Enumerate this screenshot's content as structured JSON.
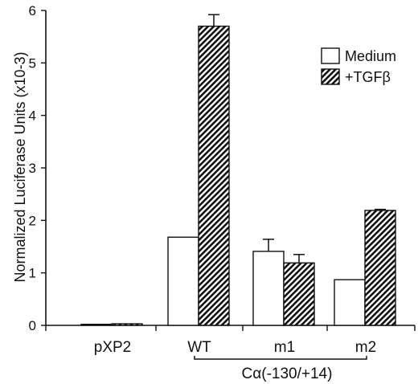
{
  "chart_data": {
    "type": "bar",
    "ylabel": "Normalized Luciferase Units (x10-3)",
    "ylim": [
      0,
      6
    ],
    "yticks": [
      "0",
      "1",
      "2",
      "3",
      "4",
      "5",
      "6"
    ],
    "categories": [
      "pXP2",
      "WT",
      "m1",
      "m2"
    ],
    "series": [
      {
        "name": "Medium",
        "values": [
          0.02,
          1.68,
          1.41,
          0.87
        ],
        "errors": [
          0,
          0,
          0.23,
          0
        ],
        "fill": "#ffffff"
      },
      {
        "name": "+TGFβ",
        "values": [
          0.03,
          5.7,
          1.19,
          2.19
        ],
        "errors": [
          0,
          0.22,
          0.16,
          0.02
        ],
        "fill": "hatched"
      }
    ],
    "legend": {
      "placement": "top-right"
    },
    "grid": false,
    "bracket": {
      "label": "Cα(-130/+14)",
      "spans": [
        "WT",
        "m2"
      ]
    },
    "colors": {
      "stroke": "#111111",
      "bar": "#ffffff",
      "hatch": "#111111"
    }
  }
}
